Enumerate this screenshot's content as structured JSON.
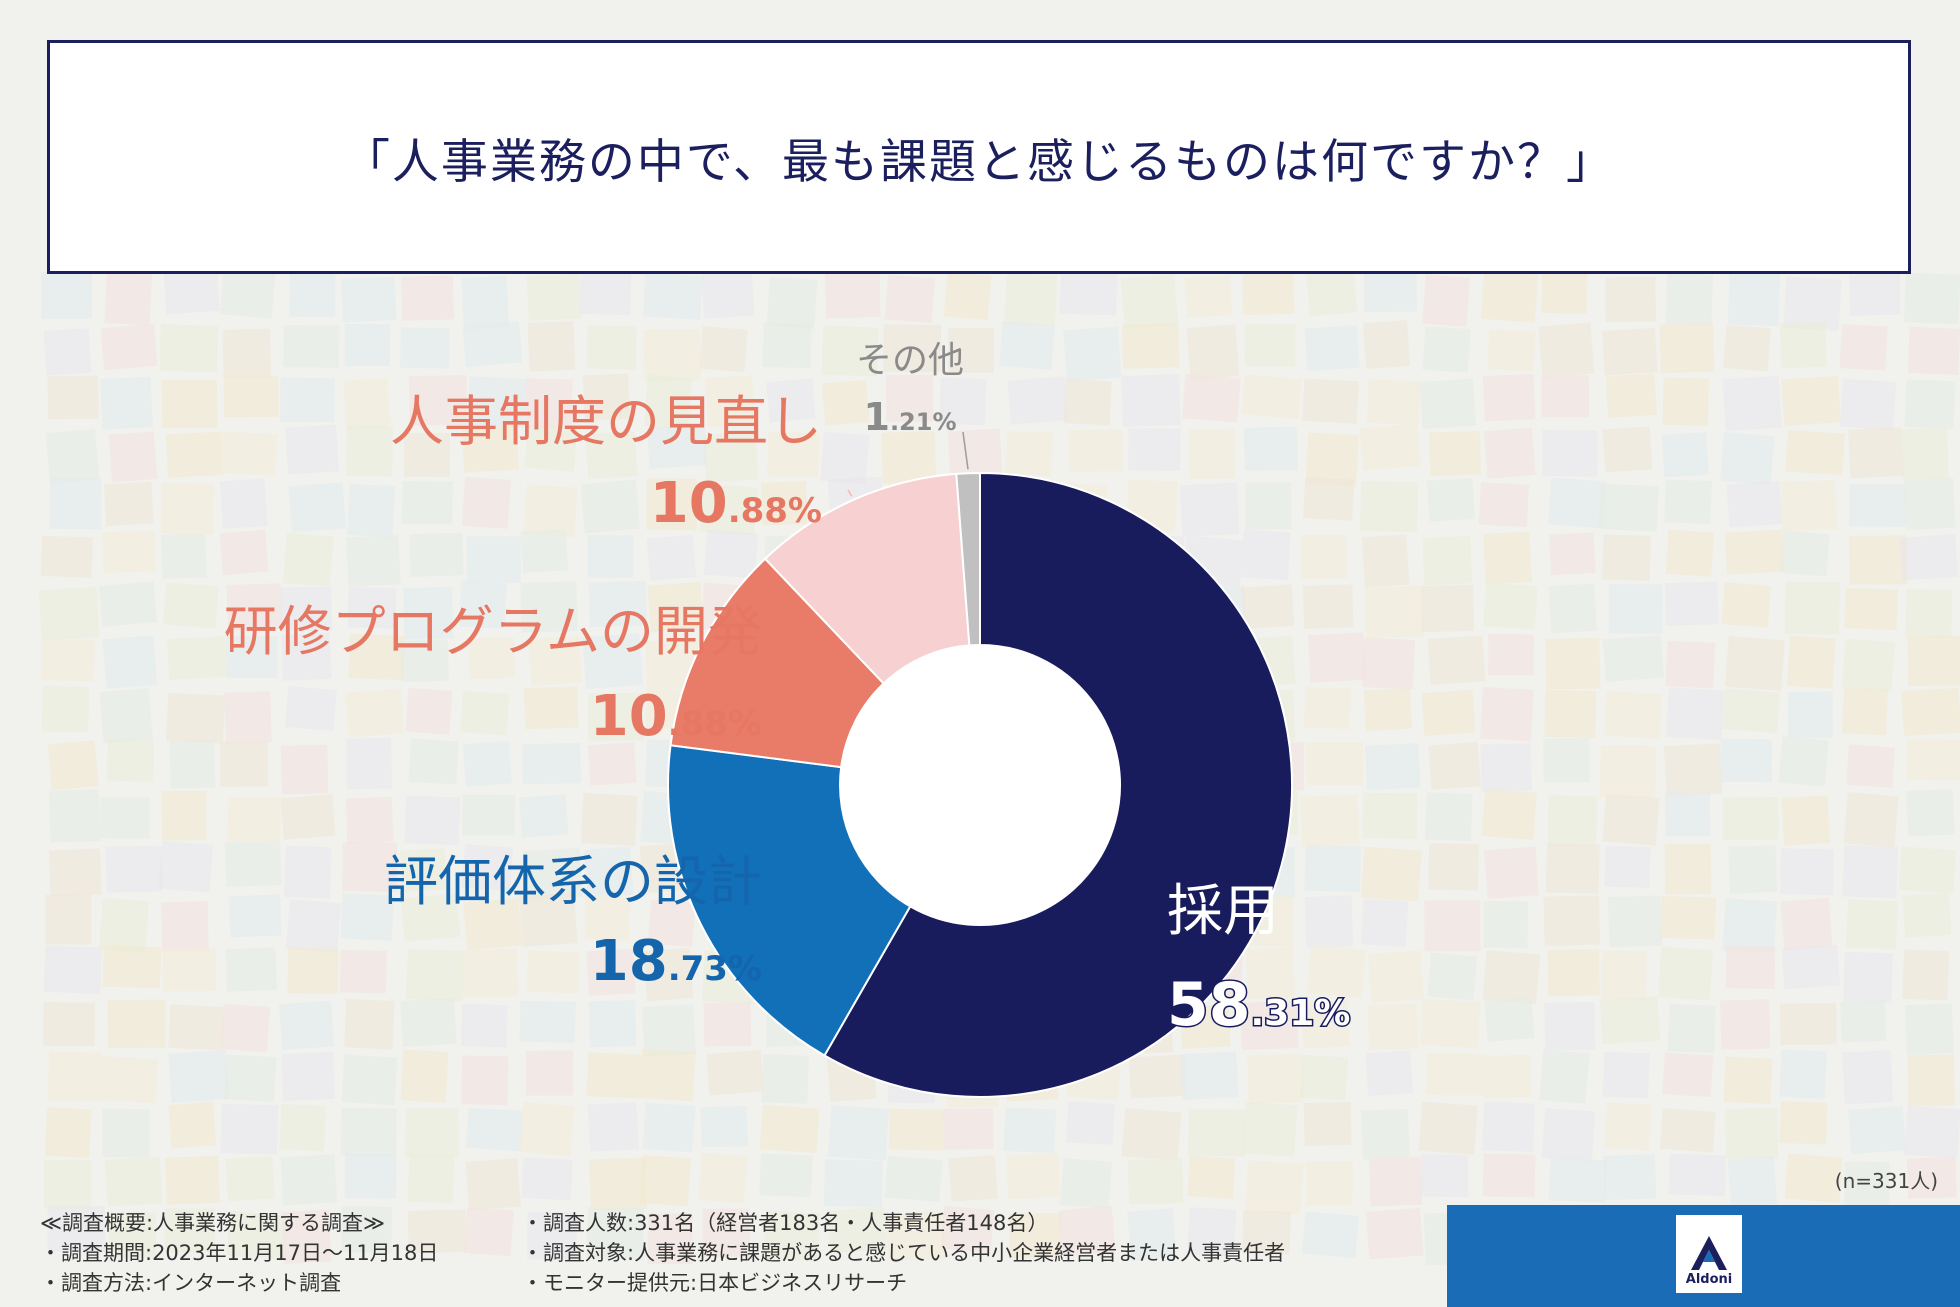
{
  "title": "「人事業務の中で、最も課題と感じるものは何ですか？」",
  "chart_data": {
    "type": "pie",
    "donut": true,
    "slices": [
      {
        "label": "採用",
        "int": "58",
        "dec": ".31%",
        "value": 58.31,
        "color": "#181c5c",
        "text_color": "#ffffff"
      },
      {
        "label": "評価体系の設計",
        "int": "18",
        "dec": ".73%",
        "value": 18.73,
        "color": "#1170b8",
        "text_color": "#1565ad"
      },
      {
        "label": "研修プログラムの開発",
        "int": "10",
        "dec": ".88%",
        "value": 10.88,
        "color": "#e97c68",
        "text_color": "#e57763"
      },
      {
        "label": "人事制度の見直し",
        "int": "10",
        "dec": ".88%",
        "value": 10.88,
        "color": "#f7d0d2",
        "text_color": "#e57763"
      },
      {
        "label": "その他",
        "int": "1",
        "dec": ".21%",
        "value": 1.21,
        "color": "#c0c0c0",
        "text_color": "#8a8a8a"
      }
    ]
  },
  "sample_size": "(n=331人)",
  "notes_left": [
    "≪調査概要:人事業務に関する調査≫",
    "・調査期間:2023年11月17日〜11月18日",
    "・調査方法:インターネット調査"
  ],
  "notes_right": [
    "・調査人数:331名（経営者183名・人事責任者148名）",
    "・調査対象:人事業務に課題があると感じている中小企業経営者または人事責任者",
    "・モニター提供元:日本ビジネスリサーチ"
  ],
  "logo_text": "Aldoni"
}
